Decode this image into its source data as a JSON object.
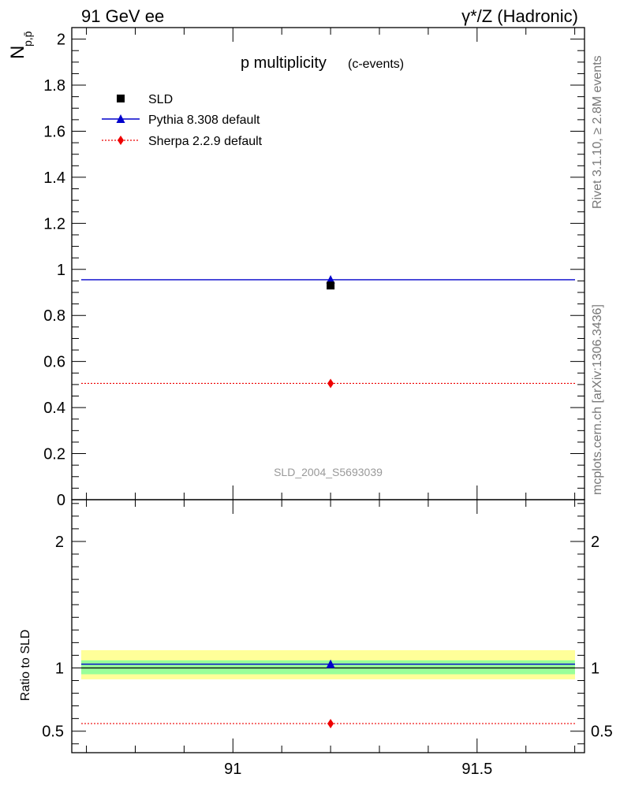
{
  "header": {
    "left": "91 GeV ee",
    "right": "γ*/Z (Hadronic)"
  },
  "title": {
    "main": "p multiplicity",
    "sub": "(c-events)"
  },
  "side_labels": {
    "rivet": "Rivet 3.1.10, ≥ 2.8M events",
    "mcplots": "mcplots.cern.ch [arXiv:1306.3436]"
  },
  "watermark": "SLD_2004_S5693039",
  "ylabel_main": "N",
  "ylabel_sub": "p,p̄",
  "ratio_ylabel": "Ratio to SLD",
  "colors": {
    "data": "#000000",
    "pythia": "#0000cc",
    "sherpa": "#ee0000",
    "band_yellow": "#ffff99",
    "band_green": "#99ff99",
    "watermark": "#999999",
    "side": "#777777"
  },
  "chart_data": [
    {
      "panel": "main",
      "type": "line",
      "xlim": [
        90.67,
        91.72
      ],
      "ylim": [
        0,
        2.05
      ],
      "y_ticks": [
        0,
        0.2,
        0.4,
        0.6,
        0.8,
        1,
        1.2,
        1.4,
        1.6,
        1.8,
        2
      ],
      "y_tick_labels": [
        "0",
        "0.2",
        "0.4",
        "0.6",
        "0.8",
        "1",
        "1.2",
        "1.4",
        "1.6",
        "1.8",
        "2"
      ],
      "x_ticks": [
        91,
        91.5
      ],
      "legend": [
        {
          "name": "SLD",
          "marker": "square"
        },
        {
          "name": "Pythia 8.308 default",
          "marker": "triangle"
        },
        {
          "name": "Sherpa 2.2.9 default",
          "marker": "diamond"
        }
      ],
      "legend_position": "top-left",
      "series": [
        {
          "name": "SLD",
          "x": [
            91.2
          ],
          "y": [
            0.93
          ]
        },
        {
          "name": "Pythia 8.308 default",
          "x": [
            91.2
          ],
          "y": [
            0.955
          ],
          "xrange": [
            90.67,
            91.72
          ]
        },
        {
          "name": "Sherpa 2.2.9 default",
          "x": [
            91.2
          ],
          "y": [
            0.505
          ],
          "xrange": [
            90.67,
            91.72
          ]
        }
      ]
    },
    {
      "panel": "ratio",
      "type": "line",
      "xlim": [
        90.67,
        91.72
      ],
      "ylim": [
        0.33,
        2.33
      ],
      "y_ticks": [
        0.5,
        1,
        2
      ],
      "y_tick_labels": [
        "0.5",
        "1",
        "2"
      ],
      "x_ticks": [
        91,
        91.5
      ],
      "x_tick_labels": [
        "91",
        "91.5"
      ],
      "bands": {
        "yellow": [
          0.91,
          1.14
        ],
        "green": [
          0.95,
          1.06
        ]
      },
      "series": [
        {
          "name": "Pythia 8.308 default",
          "x": [
            91.2
          ],
          "y": [
            1.03
          ]
        },
        {
          "name": "Sherpa 2.2.9 default",
          "x": [
            91.2
          ],
          "y": [
            0.56
          ]
        }
      ]
    }
  ]
}
